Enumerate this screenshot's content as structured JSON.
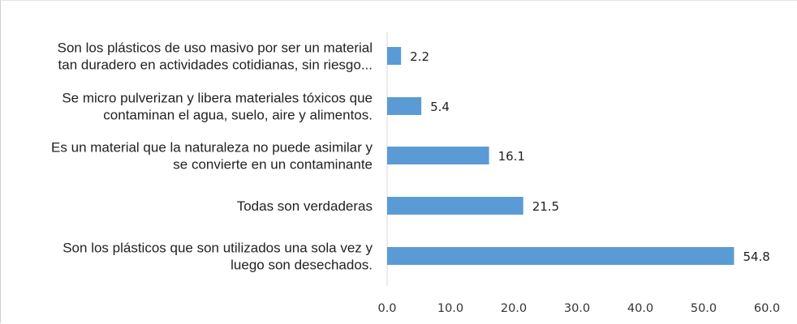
{
  "chart_data": {
    "type": "bar",
    "orientation": "horizontal",
    "categories": [
      [
        "Son los plásticos de uso masivo por ser un material",
        "tan duradero en actividades cotidianas, sin riesgo..."
      ],
      [
        "Se micro pulverizan y libera materiales tóxicos que",
        "contaminan el agua, suelo, aire y alimentos."
      ],
      [
        "Es un material que la naturaleza no puede asimilar y",
        "se convierte en un contaminante"
      ],
      [
        "Todas son verdaderas"
      ],
      [
        "Son los plásticos que son utilizados una sola vez y",
        "luego son desechados."
      ]
    ],
    "values": [
      2.2,
      5.4,
      16.1,
      21.5,
      54.8
    ],
    "data_labels": [
      "2.2",
      "5.4",
      "16.1",
      "21.5",
      "54.8"
    ],
    "xlim": [
      0,
      60
    ],
    "xticks": [
      0,
      10,
      20,
      30,
      40,
      50,
      60
    ],
    "xtick_labels": [
      "0.0",
      "10.0",
      "20.0",
      "30.0",
      "40.0",
      "50.0",
      "60.0"
    ],
    "title": "",
    "xlabel": "",
    "ylabel": "",
    "grid": false,
    "legend": "none",
    "bar_color": "#5b9bd5",
    "axis_color": "#d9d9d9"
  }
}
